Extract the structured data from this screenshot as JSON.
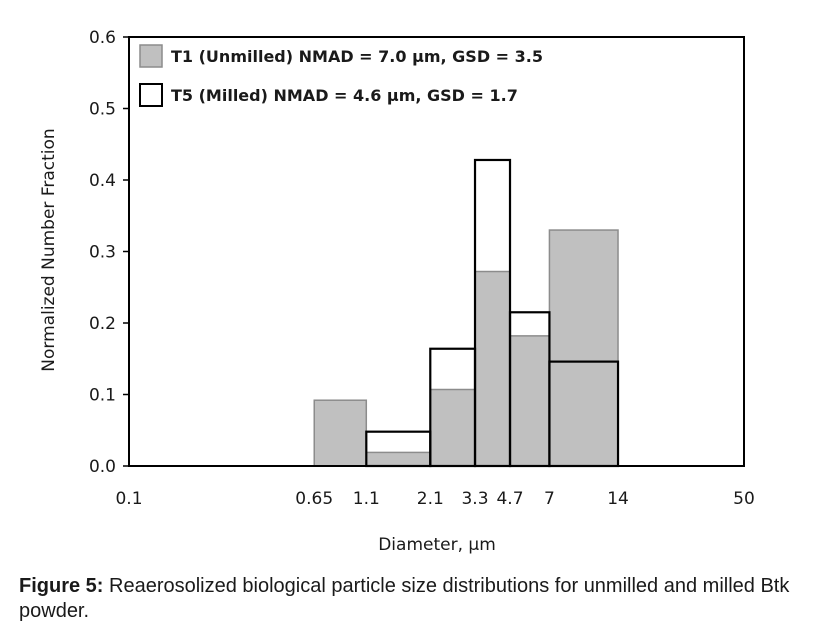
{
  "chart_data": {
    "type": "bar",
    "subtype": "histogram",
    "xlabel": "Diameter, µm",
    "ylabel": "Normalized Number Fraction",
    "x_scale": "log",
    "xlim": [
      0.1,
      50
    ],
    "ylim": [
      0,
      0.6
    ],
    "x_tick_labels": [
      "0.1",
      "0.65",
      "1.1",
      "2.1",
      "3.3",
      "4.7",
      "7",
      "14",
      "50"
    ],
    "y_tick_labels": [
      "0.0",
      "0.1",
      "0.2",
      "0.3",
      "0.4",
      "0.5",
      "0.6"
    ],
    "bin_edges": [
      0.65,
      1.1,
      2.1,
      3.3,
      4.7,
      7,
      14
    ],
    "grid": false,
    "legend_position": "top-left",
    "series": [
      {
        "name": "T1 (Unmilled)",
        "legend_text": "T1 (Unmilled) NMAD = 7.0 µm, GSD = 3.5",
        "values": [
          0.092,
          0.019,
          0.107,
          0.272,
          0.182,
          0.33
        ],
        "color": "#c0c0c0",
        "edge_color": "#8c8c8c"
      },
      {
        "name": "T5 (Milled)",
        "legend_text": "T5 (Milled) NMAD = 4.6 µm, GSD = 1.7",
        "values": [
          0.0,
          0.048,
          0.164,
          0.428,
          0.215,
          0.146
        ],
        "color": "#ffffff",
        "edge_color": "#000000"
      }
    ]
  },
  "caption": {
    "label": "Figure 5:",
    "text": " Reaerosolized biological particle size distributions for unmilled and milled Btk powder."
  }
}
